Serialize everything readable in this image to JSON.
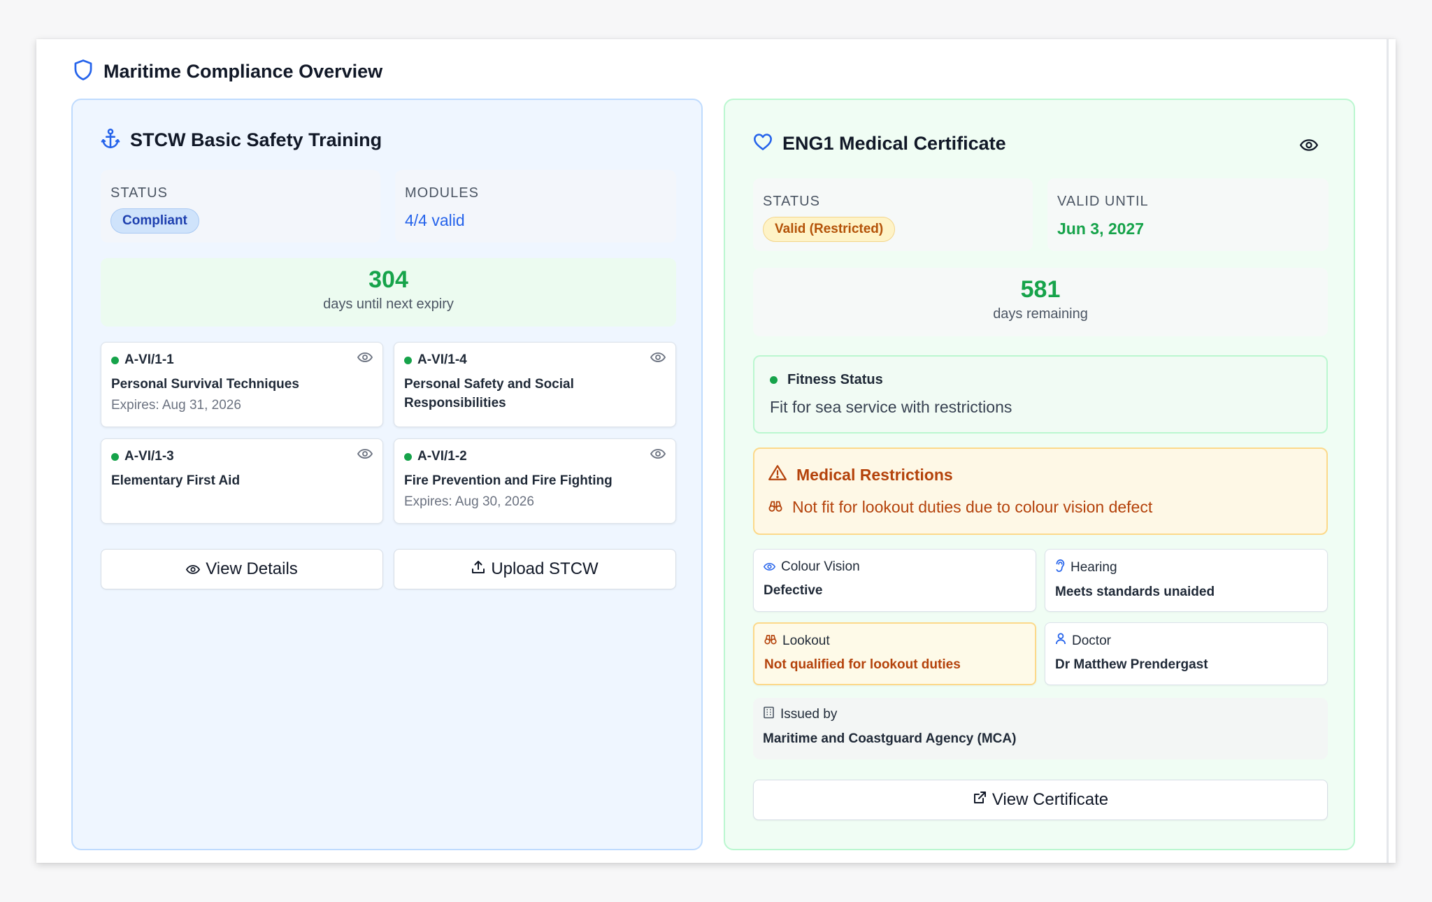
{
  "header": {
    "title": "Maritime Compliance Overview",
    "icon": "shield-icon"
  },
  "stcw": {
    "title": "STCW Basic Safety Training",
    "icon": "anchor-icon",
    "status_label": "STATUS",
    "status_value": "Compliant",
    "modules_label": "MODULES",
    "modules_value": "4/4 valid",
    "days": "304",
    "days_label": "days until next expiry",
    "modules": [
      {
        "code": "A-VI/1-1",
        "name": "Personal Survival Techniques",
        "expires": "Expires: Aug 31, 2026"
      },
      {
        "code": "A-VI/1-4",
        "name": "Personal Safety and Social Responsibilities",
        "expires": ""
      },
      {
        "code": "A-VI/1-3",
        "name": "Elementary First Aid",
        "expires": ""
      },
      {
        "code": "A-VI/1-2",
        "name": "Fire Prevention and Fire Fighting",
        "expires": "Expires: Aug 30, 2026"
      }
    ],
    "view_details_label": "View Details",
    "upload_label": "Upload STCW"
  },
  "eng1": {
    "title": "ENG1 Medical Certificate",
    "icon": "heart-icon",
    "status_label": "STATUS",
    "status_value": "Valid (Restricted)",
    "valid_until_label": "VALID UNTIL",
    "valid_until_value": "Jun 3, 2027",
    "days": "581",
    "days_label": "days remaining",
    "fitness_label": "Fitness Status",
    "fitness_value": "Fit for sea service with restrictions",
    "restrictions_title": "Medical Restrictions",
    "restriction_text": "Not fit for lookout duties due to colour vision defect",
    "colour_vision_label": "Colour Vision",
    "colour_vision_value": "Defective",
    "hearing_label": "Hearing",
    "hearing_value": "Meets standards unaided",
    "lookout_label": "Lookout",
    "lookout_value": "Not qualified for lookout duties",
    "doctor_label": "Doctor",
    "doctor_value": "Dr Matthew Prendergast",
    "issued_by_label": "Issued by",
    "issued_by_value": "Maritime and Coastguard Agency (MCA)",
    "view_certificate_label": "View Certificate"
  },
  "colors": {
    "blue_accent": "#2563eb",
    "green_accent": "#16a34a",
    "amber_accent": "#b4420b"
  }
}
